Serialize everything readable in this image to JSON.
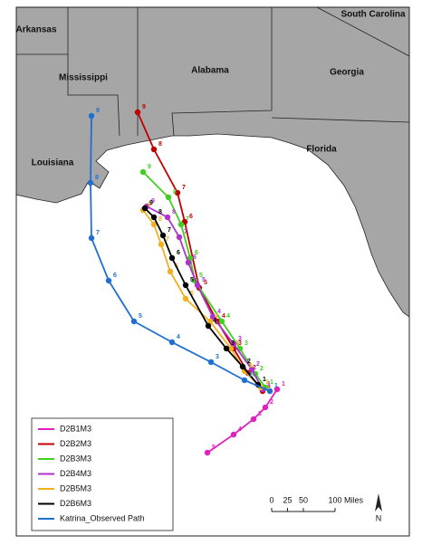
{
  "map": {
    "regions": [
      "South Carolina",
      "Arkansas",
      "Mississippi",
      "Alabama",
      "Georgia",
      "Louisiana",
      "Florida"
    ],
    "tracks": [
      {
        "name": "D2B1M3",
        "color": "#e020c0",
        "labels": [
          1,
          2,
          3,
          4,
          5
        ]
      },
      {
        "name": "D2B2M3",
        "color": "#c00000",
        "labels": [
          1,
          2,
          3,
          4,
          5,
          6,
          7,
          8,
          9
        ]
      },
      {
        "name": "D2B3M3",
        "color": "#40d020",
        "labels": [
          1,
          2,
          3,
          4,
          5,
          6,
          7,
          8,
          9
        ]
      },
      {
        "name": "D2B4M3",
        "color": "#b030d0",
        "labels": [
          1,
          2,
          3,
          4,
          5,
          6,
          7,
          8,
          9
        ]
      },
      {
        "name": "D2B5M3",
        "color": "#f0b020",
        "labels": [
          1,
          2,
          3,
          4,
          5,
          6,
          7,
          8,
          9
        ]
      },
      {
        "name": "D2B6M3",
        "color": "#000000",
        "labels": [
          1,
          2,
          3,
          4,
          5,
          6,
          7,
          8,
          9
        ]
      },
      {
        "name": "Katrina_Observed Path",
        "color": "#1f6fd1",
        "labels": [
          1,
          2,
          3,
          4,
          5,
          6,
          7,
          8,
          9
        ]
      }
    ],
    "scale": {
      "ticks": [
        0,
        25,
        50,
        100
      ],
      "unit": "Miles"
    },
    "north": "N"
  }
}
